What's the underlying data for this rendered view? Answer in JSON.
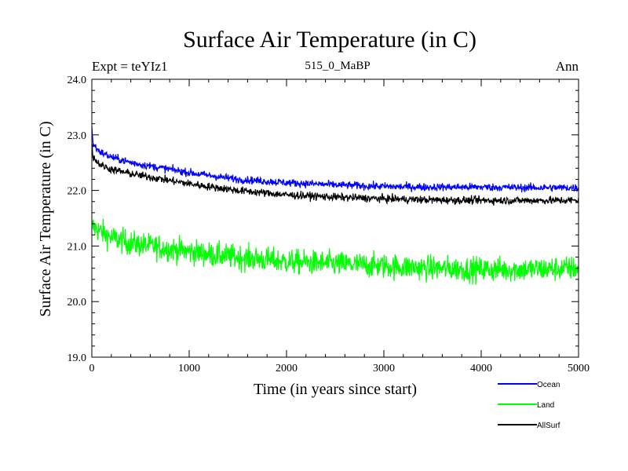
{
  "chart_data": {
    "type": "line",
    "title": "Surface Air Temperature (in C)",
    "subtitle_left": "Expt = teYIz1",
    "subtitle_center": "515_0_MaBP",
    "subtitle_right": "Ann",
    "xlabel": "Time (in years since start)",
    "ylabel": "Surface Air Temperature (in C)",
    "xlim": [
      0,
      5000
    ],
    "ylim": [
      19.0,
      24.0
    ],
    "xticks": [
      0,
      1000,
      2000,
      3000,
      4000,
      5000
    ],
    "xtick_labels": [
      "0",
      "1000",
      "2000",
      "3000",
      "4000",
      "5000"
    ],
    "yticks": [
      19.0,
      20.0,
      21.0,
      22.0,
      23.0,
      24.0
    ],
    "ytick_labels": [
      "19.0",
      "20.0",
      "21.0",
      "22.0",
      "23.0",
      "24.0"
    ],
    "legend_position": "bottom-right",
    "series": [
      {
        "name": "Ocean",
        "color": "#0000ff",
        "noise": 0.05,
        "x": [
          0,
          10,
          50,
          100,
          200,
          400,
          600,
          800,
          1000,
          1200,
          1500,
          2000,
          2500,
          3000,
          3500,
          4000,
          4500,
          5000
        ],
        "values": [
          23.15,
          22.85,
          22.75,
          22.68,
          22.6,
          22.5,
          22.44,
          22.38,
          22.32,
          22.27,
          22.2,
          22.14,
          22.1,
          22.07,
          22.06,
          22.06,
          22.05,
          22.05
        ]
      },
      {
        "name": "Land",
        "color": "#00ff00",
        "noise": 0.16,
        "x": [
          0,
          10,
          50,
          100,
          200,
          400,
          600,
          800,
          1000,
          1200,
          1500,
          2000,
          2500,
          3000,
          3500,
          4000,
          4500,
          5000
        ],
        "values": [
          21.3,
          21.35,
          21.3,
          21.25,
          21.15,
          21.05,
          21.0,
          20.95,
          20.9,
          20.85,
          20.8,
          20.72,
          20.68,
          20.64,
          20.6,
          20.58,
          20.58,
          20.6
        ]
      },
      {
        "name": "AllSurf",
        "color": "#000000",
        "noise": 0.05,
        "x": [
          0,
          10,
          50,
          100,
          200,
          400,
          600,
          800,
          1000,
          1200,
          1500,
          2000,
          2500,
          3000,
          3500,
          4000,
          4500,
          5000
        ],
        "values": [
          22.85,
          22.62,
          22.52,
          22.45,
          22.38,
          22.3,
          22.24,
          22.18,
          22.12,
          22.07,
          22.0,
          21.92,
          21.88,
          21.85,
          21.83,
          21.82,
          21.82,
          21.82
        ]
      }
    ]
  }
}
